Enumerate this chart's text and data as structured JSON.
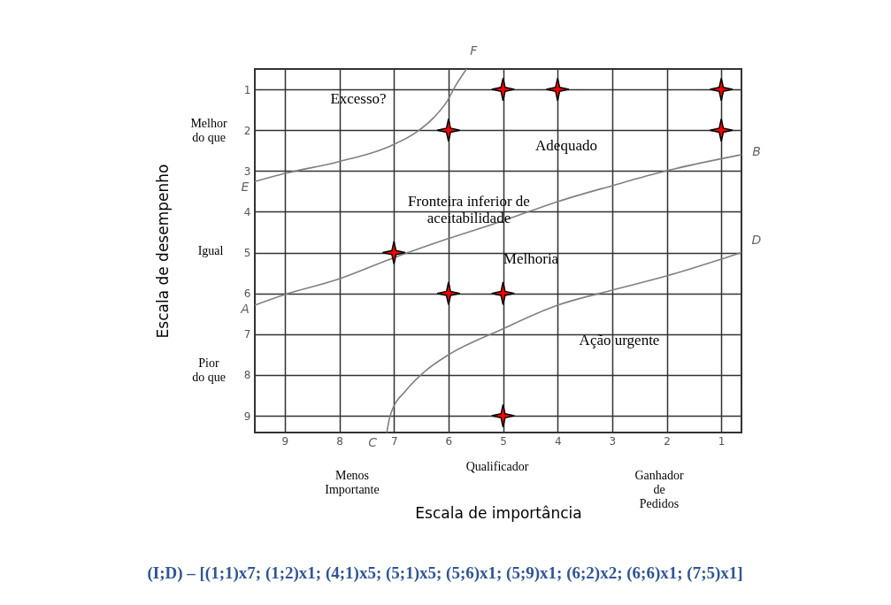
{
  "chart_data": {
    "type": "scatter",
    "xlabel": "Escala de importância",
    "ylabel": "Escala de desempenho",
    "xlim": [
      9.55,
      0.63
    ],
    "ylim": [
      9.41,
      0.5
    ],
    "xticks": [
      9,
      8,
      7,
      6,
      5,
      4,
      3,
      2,
      1
    ],
    "yticks": [
      1,
      2,
      3,
      4,
      5,
      6,
      7,
      8,
      9
    ],
    "grid": true,
    "series": [
      {
        "type": "scatter",
        "marker": "star",
        "color": "#ff0000",
        "x": [
          5,
          4,
          1,
          6,
          1,
          7,
          6,
          5,
          5
        ],
        "values": [
          1,
          1,
          1,
          2,
          2,
          5,
          6,
          6,
          9
        ]
      },
      {
        "type": "line",
        "color": "#808080",
        "x": [
          9.55,
          9.0,
          8.04,
          7.07,
          6.6,
          6.27,
          6.03,
          5.87,
          5.67
        ],
        "values": [
          3.26,
          3.06,
          2.78,
          2.39,
          2.06,
          1.69,
          1.3,
          0.91,
          0.5
        ]
      },
      {
        "type": "line",
        "color": "#808080",
        "x": [
          9.55,
          9.0,
          8.04,
          7.07,
          6.03,
          5.02,
          4.0,
          3.0,
          2.02,
          0.63
        ],
        "values": [
          6.29,
          6.03,
          5.66,
          5.16,
          4.67,
          4.23,
          3.75,
          3.36,
          3.0,
          2.6
        ]
      },
      {
        "type": "line",
        "color": "#808080",
        "x": [
          7.13,
          7.07,
          6.76,
          6.44,
          6.03,
          5.02,
          4.0,
          3.0,
          2.02,
          1.0,
          0.63
        ],
        "values": [
          9.41,
          9.0,
          8.35,
          7.92,
          7.53,
          6.88,
          6.29,
          5.92,
          5.58,
          5.16,
          5.0
        ]
      }
    ],
    "annotations": [
      "Excesso?",
      "Adequado",
      "Fronteira inferior de\naceitabilidade",
      "Melhoria",
      "Ação urgente",
      {
        "text": "E",
        "x": 9.55,
        "y": 3.26
      },
      {
        "text": "A",
        "x": 9.55,
        "y": 6.29
      },
      {
        "text": "F",
        "x": 5.67,
        "y": 0.5
      },
      {
        "text": "B",
        "x": 0.63,
        "y": 2.6
      },
      {
        "text": "C",
        "x": 7.13,
        "y": 9.41
      },
      {
        "text": "D",
        "x": 0.63,
        "y": 5.0
      },
      "Melhor\ndo que",
      "Igual",
      "Pior\ndo que",
      "Menos\nImportante",
      "Qualificador",
      "Ganhador\nde\nPedidos",
      "(I;D) – [(1;1)x7; (1;2)x1; (4;1)x5; (5;1)x5; (5;6)x1; (5;9)x1; (6;2)x2; (6;6)x1; (7;5)x1]"
    ]
  }
}
